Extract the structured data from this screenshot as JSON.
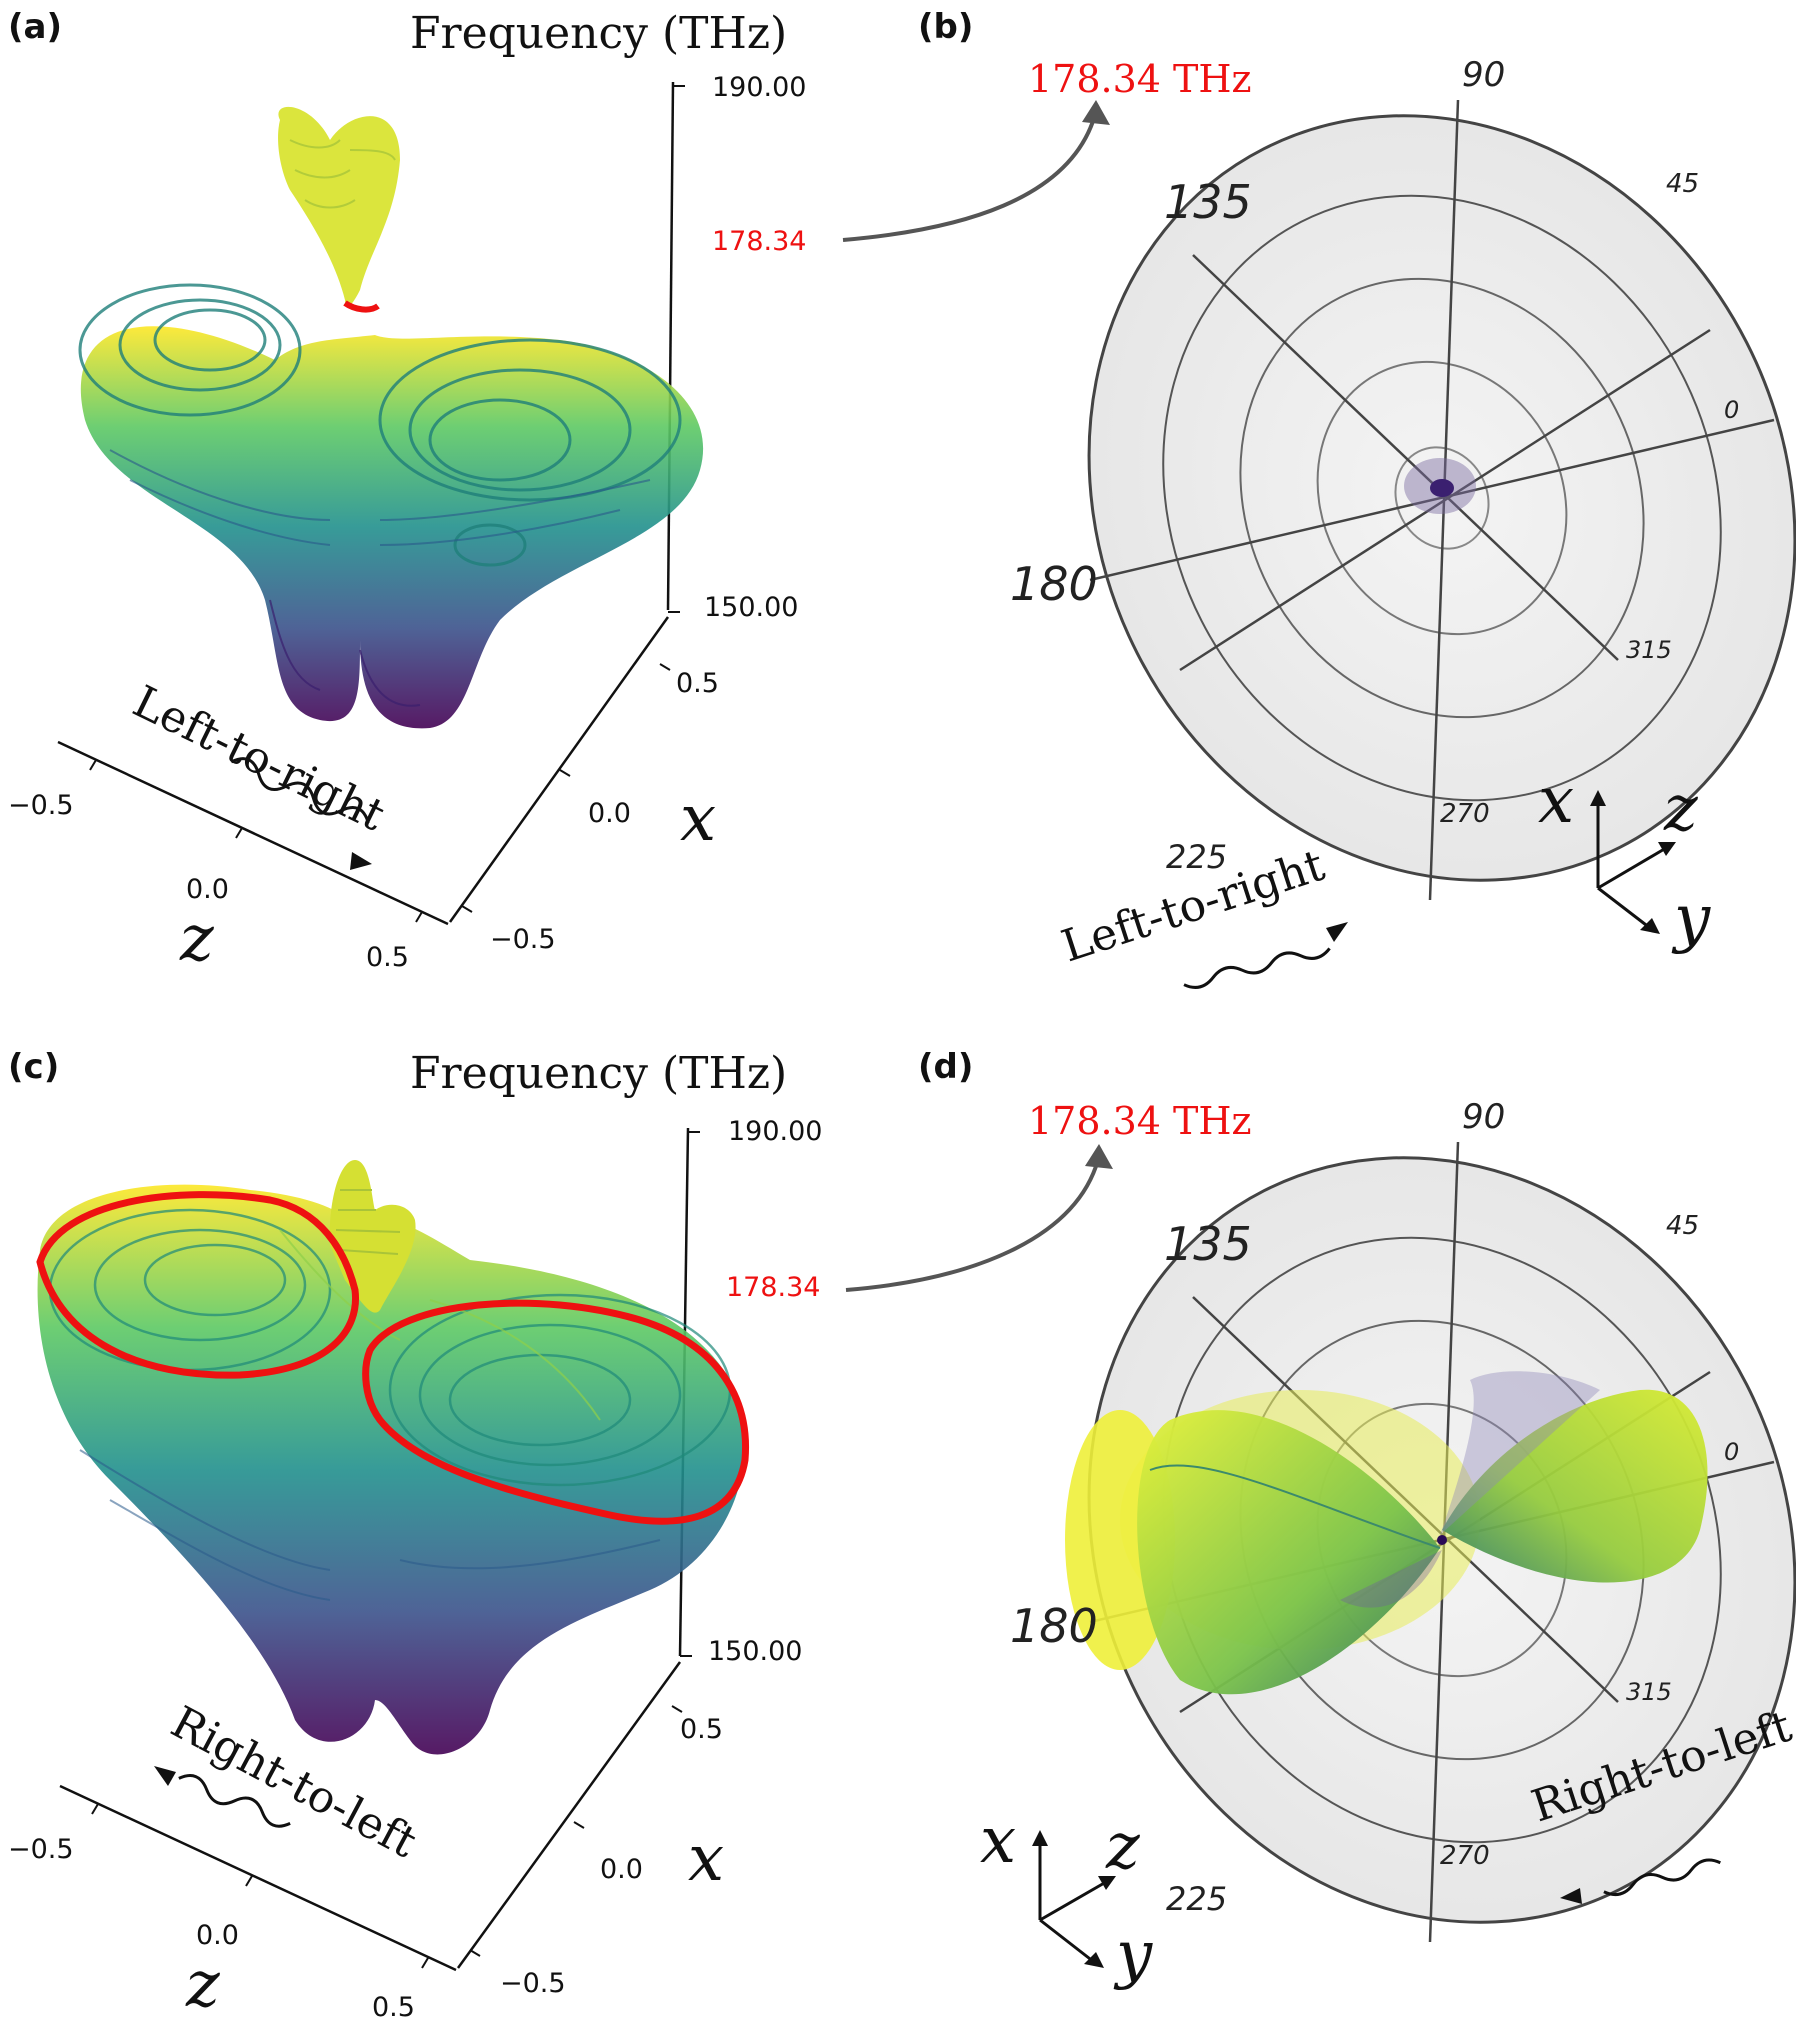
{
  "panels": {
    "a": {
      "label": "(a)",
      "title": "Frequency (THz)",
      "freq_ticks": [
        "190.00",
        "178.34",
        "150.00"
      ],
      "x_ticks": [
        "0.5",
        "0.0",
        "−0.5"
      ],
      "z_ticks": [
        "−0.5",
        "0.0",
        "0.5"
      ],
      "x_axis": "x",
      "z_axis": "z",
      "direction": "Left-to-right"
    },
    "b": {
      "label": "(b)",
      "freq": "178.34 THz",
      "angles": [
        "90",
        "45",
        "0",
        "315",
        "270",
        "225",
        "180",
        "135"
      ],
      "axes": [
        "x",
        "z",
        "y"
      ],
      "direction": "Left-to-right"
    },
    "c": {
      "label": "(c)",
      "title": "Frequency (THz)",
      "freq_ticks": [
        "190.00",
        "178.34",
        "150.00"
      ],
      "x_ticks": [
        "0.5",
        "0.0",
        "−0.5"
      ],
      "z_ticks": [
        "−0.5",
        "0.0",
        "0.5"
      ],
      "x_axis": "x",
      "z_axis": "z",
      "direction": "Right-to-left"
    },
    "d": {
      "label": "(d)",
      "freq": "178.34 THz",
      "angles": [
        "90",
        "45",
        "0",
        "315",
        "270",
        "225",
        "180",
        "135"
      ],
      "axes": [
        "x",
        "z",
        "y"
      ],
      "direction": "Right-to-left"
    }
  },
  "colors": {
    "highlight": "#ee1111",
    "viridis_low": "#440154",
    "viridis_mid": "#21908d",
    "viridis_high": "#fde725"
  }
}
